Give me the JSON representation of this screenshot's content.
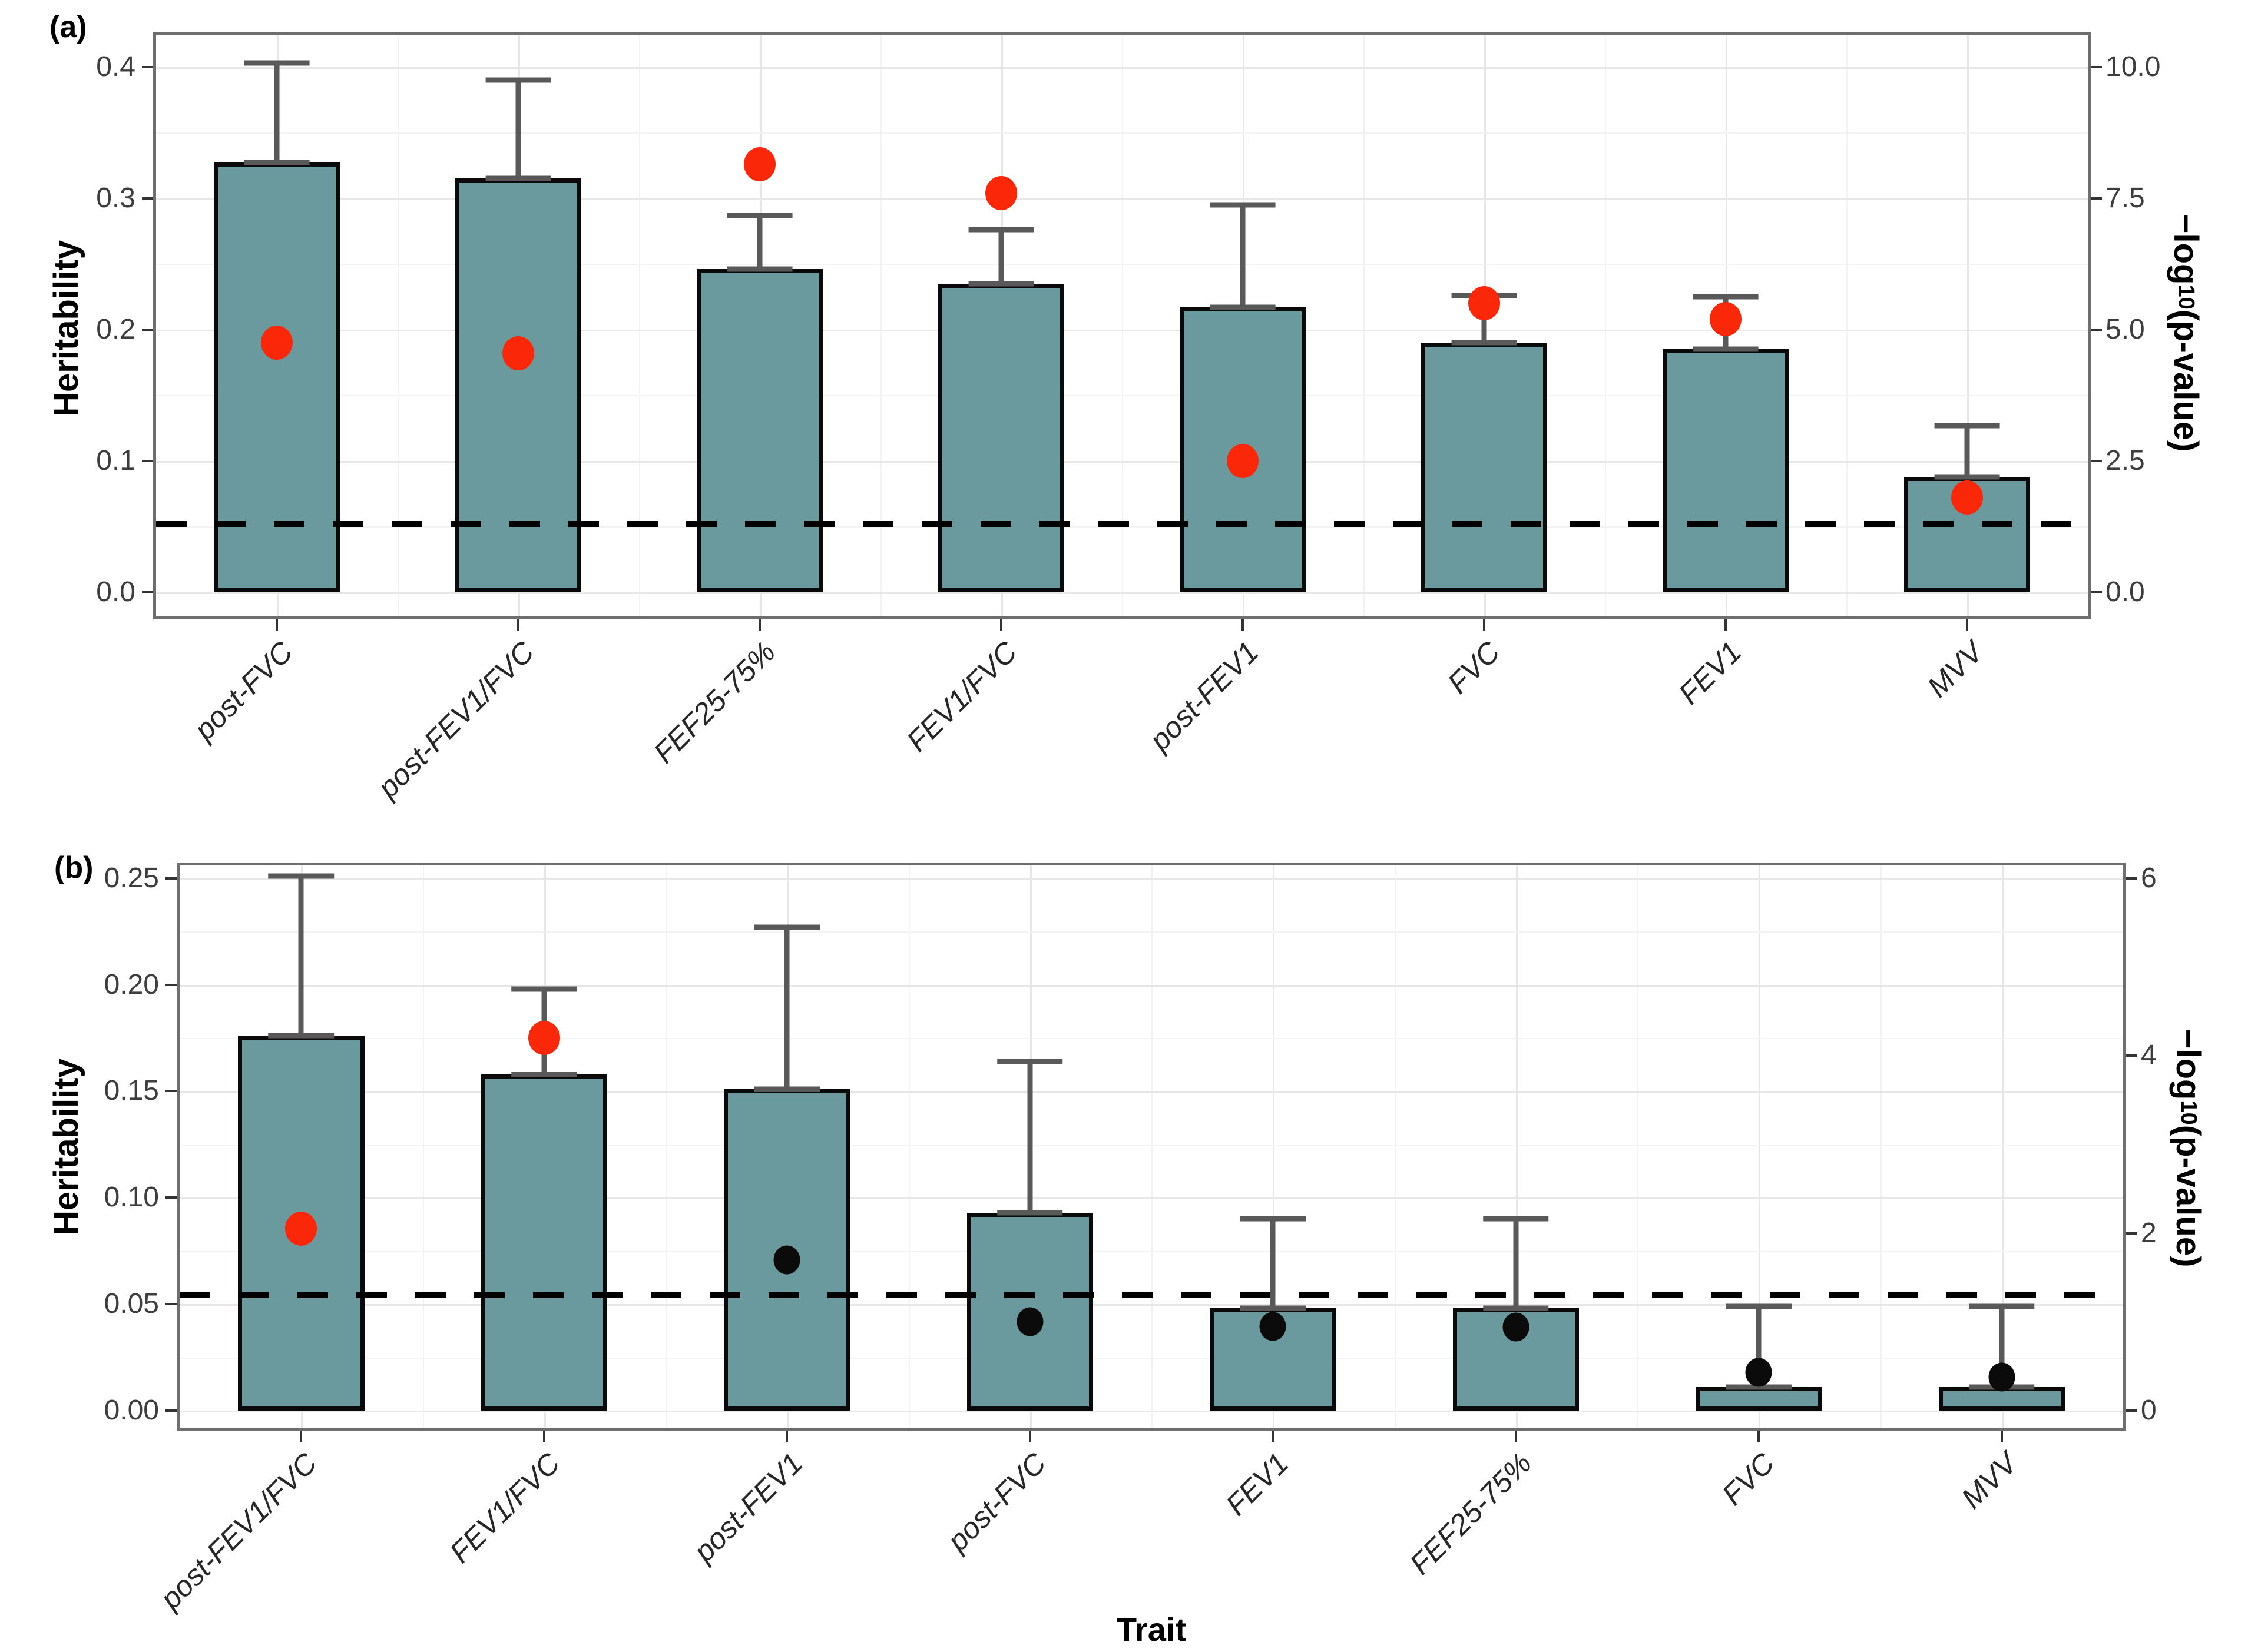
{
  "palette": {
    "bar_fill": "#6b9a9e",
    "bar_border": "#0a0a0a",
    "error_bar": "#595959",
    "red_dot": "#fa2808",
    "black_dot": "#0b0b0b",
    "threshold_line": "#000000"
  },
  "chart_data": [
    {
      "type": "bar",
      "panel": "a",
      "tag": "(a)",
      "x_title": "Trait",
      "y_left_title": "Heritability",
      "y_right_title": {
        "prefix": "−log",
        "sub": "10",
        "suffix": "(p-value)"
      },
      "categories": [
        "post-FVC",
        "post-FEV1/FVC",
        "FEF25-75%",
        "FEV1/FVC",
        "post-FEV1",
        "FVC",
        "FEV1",
        "MVV"
      ],
      "series": [
        {
          "name": "Heritability",
          "values": [
            0.327,
            0.315,
            0.246,
            0.235,
            0.217,
            0.19,
            0.185,
            0.088
          ]
        },
        {
          "name": "Upper error",
          "values": [
            0.403,
            0.39,
            0.287,
            0.276,
            0.295,
            0.226,
            0.225,
            0.127
          ]
        },
        {
          "name": "-log10(p-value)",
          "values": [
            4.75,
            4.55,
            8.15,
            7.6,
            2.5,
            5.5,
            5.2,
            1.8
          ]
        }
      ],
      "point_colors": [
        "red",
        "red",
        "red",
        "red",
        "red",
        "red",
        "red",
        "red"
      ],
      "threshold_neg_log10_p": 1.3,
      "axes": {
        "left": {
          "tick_labels": [
            "0.0",
            "0.1",
            "0.2",
            "0.3",
            "0.4"
          ],
          "tick_values": [
            0,
            0.1,
            0.2,
            0.3,
            0.4
          ],
          "min": -0.0184,
          "max": 0.424
        },
        "right": {
          "tick_labels": [
            "0.0",
            "2.5",
            "5.0",
            "7.5",
            "10.0"
          ],
          "tick_values": [
            0,
            2.5,
            5,
            7.5,
            10
          ],
          "factor": 25
        },
        "grid": true
      }
    },
    {
      "type": "bar",
      "panel": "b",
      "tag": "(b)",
      "x_title": "Trait",
      "y_left_title": "Heritability",
      "y_right_title": {
        "prefix": "−log",
        "sub": "10",
        "suffix": "(p-value)"
      },
      "categories": [
        "post-FEV1/FVC",
        "FEV1/FVC",
        "post-FEV1",
        "post-FVC",
        "FEV1",
        "FEF25-75%",
        "FVC",
        "MVV"
      ],
      "series": [
        {
          "name": "Heritability",
          "values": [
            0.176,
            0.158,
            0.151,
            0.093,
            0.048,
            0.048,
            0.011,
            0.011
          ]
        },
        {
          "name": "Upper error",
          "values": [
            0.251,
            0.198,
            0.227,
            0.164,
            0.09,
            0.09,
            0.049,
            0.049
          ]
        },
        {
          "name": "-log10(p-value)",
          "values": [
            2.05,
            4.2,
            1.7,
            1.0,
            0.95,
            0.94,
            0.43,
            0.38
          ]
        }
      ],
      "point_colors": [
        "red",
        "red",
        "black",
        "black",
        "black",
        "black",
        "black",
        "black"
      ],
      "threshold_neg_log10_p": 1.3,
      "axes": {
        "left": {
          "tick_labels": [
            "0.00",
            "0.05",
            "0.10",
            "0.15",
            "0.20",
            "0.25"
          ],
          "tick_values": [
            0,
            0.05,
            0.1,
            0.15,
            0.2,
            0.25
          ],
          "min": -0.008,
          "max": 0.256
        },
        "right": {
          "tick_labels": [
            "0",
            "2",
            "4",
            "6"
          ],
          "tick_values": [
            0,
            2,
            4,
            6
          ],
          "factor": 24
        },
        "grid": true
      }
    }
  ]
}
